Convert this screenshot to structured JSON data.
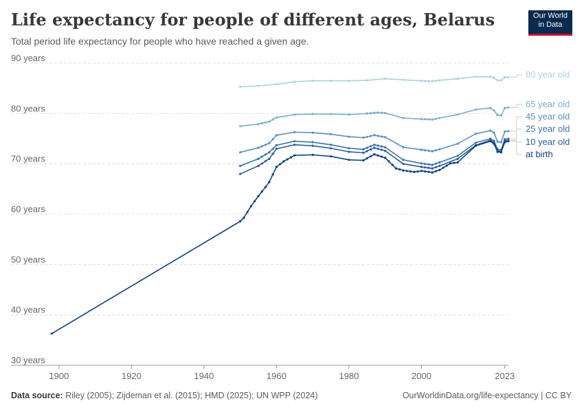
{
  "header": {
    "title": "Life expectancy for people of different ages, Belarus",
    "subtitle": "Total period life expectancy for people who have reached a given age."
  },
  "logo": {
    "line1": "Our World",
    "line2": "in Data",
    "bg": "#0b2a4f",
    "accent": "#c8102e"
  },
  "footer": {
    "source_label": "Data source:",
    "source_text": "Riley (2005); Zijdeman et al. (2015); HMD (2025); UN WPP (2024)",
    "link": "OurWorldinData.org/life-expectancy | CC BY"
  },
  "chart_data": {
    "type": "line",
    "title": "Life expectancy for people of different ages, Belarus",
    "x_ticks": [
      1900,
      1920,
      1940,
      1960,
      1980,
      2000,
      2023
    ],
    "y_ticks": [
      30,
      40,
      50,
      60,
      70,
      80,
      90
    ],
    "y_tick_labels": [
      "30 years",
      "40 years",
      "50 years",
      "60 years",
      "70 years",
      "80 years",
      "90 years"
    ],
    "xlim": [
      1897,
      2024
    ],
    "ylim": [
      30,
      90
    ],
    "grid": "horizontal dashed",
    "legend": "right",
    "series": [
      {
        "name": "80 year old",
        "color": "#a8d2de",
        "points": [
          [
            1950,
            85.3
          ],
          [
            1955,
            85.5
          ],
          [
            1960,
            85.8
          ],
          [
            1965,
            86.3
          ],
          [
            1970,
            86.5
          ],
          [
            1975,
            86.5
          ],
          [
            1980,
            86.5
          ],
          [
            1985,
            86.6
          ],
          [
            1990,
            86.9
          ],
          [
            1995,
            86.7
          ],
          [
            2000,
            86.5
          ],
          [
            2003,
            86.4
          ],
          [
            2005,
            86.6
          ],
          [
            2010,
            86.9
          ],
          [
            2015,
            87.3
          ],
          [
            2019,
            87.3
          ],
          [
            2020,
            87.1
          ],
          [
            2021,
            86.6
          ],
          [
            2022,
            86.6
          ],
          [
            2023,
            87.2
          ],
          [
            2024,
            87.2
          ]
        ]
      },
      {
        "name": "65 year old",
        "color": "#7aaecb",
        "points": [
          [
            1950,
            77.5
          ],
          [
            1955,
            77.9
          ],
          [
            1958,
            78.4
          ],
          [
            1960,
            79.2
          ],
          [
            1965,
            79.8
          ],
          [
            1970,
            79.9
          ],
          [
            1975,
            79.9
          ],
          [
            1980,
            79.8
          ],
          [
            1985,
            80.0
          ],
          [
            1988,
            80.2
          ],
          [
            1990,
            80.1
          ],
          [
            1995,
            79.1
          ],
          [
            2000,
            78.9
          ],
          [
            2003,
            78.8
          ],
          [
            2005,
            79.1
          ],
          [
            2010,
            79.8
          ],
          [
            2015,
            80.8
          ],
          [
            2019,
            81.1
          ],
          [
            2020,
            80.6
          ],
          [
            2021,
            79.7
          ],
          [
            2022,
            79.6
          ],
          [
            2023,
            81.1
          ],
          [
            2024,
            81.2
          ]
        ]
      },
      {
        "name": "45 year old",
        "color": "#5a8fc3",
        "points": [
          [
            1950,
            72.3
          ],
          [
            1955,
            73.2
          ],
          [
            1958,
            74.1
          ],
          [
            1960,
            75.7
          ],
          [
            1965,
            76.3
          ],
          [
            1970,
            76.2
          ],
          [
            1975,
            75.9
          ],
          [
            1980,
            75.4
          ],
          [
            1984,
            75.2
          ],
          [
            1987,
            75.7
          ],
          [
            1990,
            75.3
          ],
          [
            1995,
            73.3
          ],
          [
            2000,
            72.8
          ],
          [
            2003,
            72.5
          ],
          [
            2005,
            72.9
          ],
          [
            2010,
            74.0
          ],
          [
            2015,
            76.0
          ],
          [
            2019,
            76.6
          ],
          [
            2020,
            76.2
          ],
          [
            2021,
            74.4
          ],
          [
            2022,
            74.3
          ],
          [
            2023,
            76.4
          ],
          [
            2024,
            76.5
          ]
        ]
      },
      {
        "name": "25 year old",
        "color": "#3e71b0",
        "points": [
          [
            1950,
            69.6
          ],
          [
            1955,
            71.0
          ],
          [
            1958,
            72.3
          ],
          [
            1960,
            73.7
          ],
          [
            1965,
            74.5
          ],
          [
            1970,
            74.3
          ],
          [
            1975,
            73.8
          ],
          [
            1980,
            73.1
          ],
          [
            1984,
            72.9
          ],
          [
            1987,
            73.8
          ],
          [
            1990,
            73.3
          ],
          [
            1995,
            70.8
          ],
          [
            2000,
            70.1
          ],
          [
            2003,
            69.8
          ],
          [
            2005,
            70.3
          ],
          [
            2010,
            71.6
          ],
          [
            2015,
            74.2
          ],
          [
            2019,
            75.0
          ],
          [
            2020,
            74.6
          ],
          [
            2021,
            72.9
          ],
          [
            2022,
            72.8
          ],
          [
            2023,
            74.9
          ],
          [
            2024,
            75.0
          ]
        ]
      },
      {
        "name": "10 year old",
        "color": "#2a5c9f",
        "points": [
          [
            1950,
            68.0
          ],
          [
            1955,
            69.6
          ],
          [
            1958,
            71.0
          ],
          [
            1960,
            73.0
          ],
          [
            1965,
            73.8
          ],
          [
            1970,
            73.6
          ],
          [
            1975,
            73.1
          ],
          [
            1980,
            72.4
          ],
          [
            1984,
            72.2
          ],
          [
            1987,
            73.2
          ],
          [
            1990,
            72.6
          ],
          [
            1995,
            70.0
          ],
          [
            2000,
            69.4
          ],
          [
            2003,
            69.1
          ],
          [
            2005,
            69.6
          ],
          [
            2010,
            71.0
          ],
          [
            2015,
            73.7
          ],
          [
            2019,
            74.7
          ],
          [
            2020,
            74.3
          ],
          [
            2021,
            72.6
          ],
          [
            2022,
            72.5
          ],
          [
            2023,
            74.6
          ],
          [
            2024,
            74.7
          ]
        ]
      },
      {
        "name": "at birth",
        "color": "#0f3e88",
        "points": [
          [
            1898,
            36.3
          ],
          [
            1950,
            58.6
          ],
          [
            1951,
            59.3
          ],
          [
            1953,
            61.6
          ],
          [
            1955,
            63.6
          ],
          [
            1957,
            65.4
          ],
          [
            1958,
            66.4
          ],
          [
            1960,
            69.4
          ],
          [
            1962,
            70.5
          ],
          [
            1965,
            71.7
          ],
          [
            1970,
            71.8
          ],
          [
            1975,
            71.5
          ],
          [
            1980,
            70.8
          ],
          [
            1984,
            70.7
          ],
          [
            1987,
            71.9
          ],
          [
            1990,
            71.2
          ],
          [
            1993,
            69.1
          ],
          [
            1995,
            68.7
          ],
          [
            1998,
            68.4
          ],
          [
            2000,
            68.6
          ],
          [
            2003,
            68.3
          ],
          [
            2005,
            68.8
          ],
          [
            2008,
            70.1
          ],
          [
            2010,
            70.3
          ],
          [
            2015,
            73.6
          ],
          [
            2019,
            74.5
          ],
          [
            2020,
            74.0
          ],
          [
            2021,
            72.4
          ],
          [
            2022,
            72.3
          ],
          [
            2023,
            74.3
          ],
          [
            2024,
            74.5
          ]
        ]
      }
    ]
  }
}
